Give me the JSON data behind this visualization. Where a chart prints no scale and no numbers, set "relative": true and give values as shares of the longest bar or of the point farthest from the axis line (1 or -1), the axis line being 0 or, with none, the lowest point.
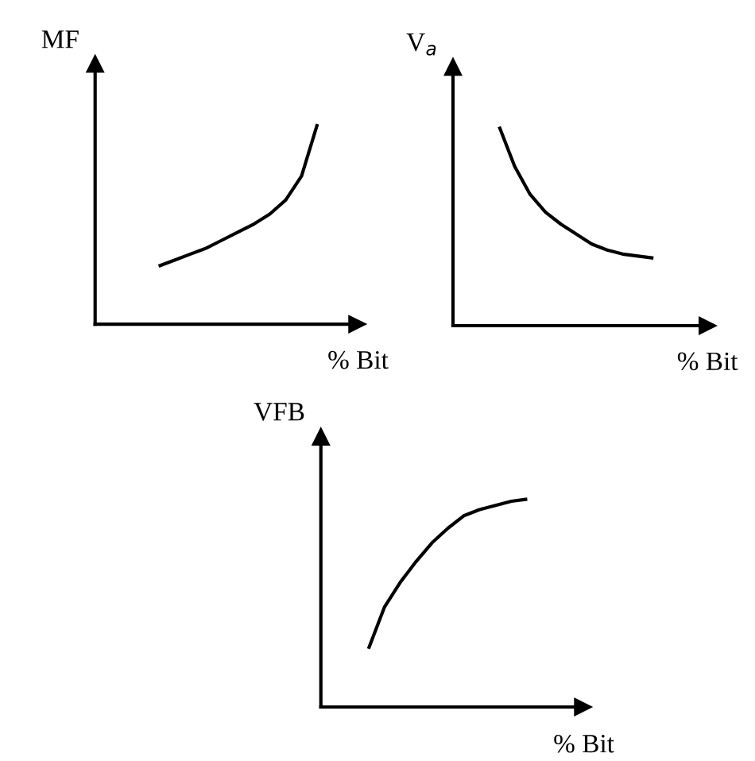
{
  "chart_data": [
    {
      "type": "line",
      "ylabel": "MF",
      "xlabel": "% Bit",
      "relative": true,
      "categories": [
        null,
        null,
        null,
        null,
        null,
        null,
        null,
        null,
        null,
        null,
        null,
        null,
        null,
        null,
        null,
        null,
        null
      ],
      "series": [
        {
          "color": "#000000",
          "values": [
            null,
            null,
            null,
            null,
            0.29,
            0.32,
            0.35,
            0.38,
            0.42,
            0.46,
            0.5,
            0.55,
            0.62,
            0.74,
            1.0,
            null,
            null
          ]
        }
      ]
    },
    {
      "type": "line",
      "ylabel": "V$_{a}$",
      "xlabel": "% Bit",
      "relative": true,
      "categories": [
        null,
        null,
        null,
        null,
        null,
        null,
        null,
        null,
        null,
        null,
        null,
        null,
        null,
        null,
        null,
        null,
        null
      ],
      "series": [
        {
          "color": "#000000",
          "values": [
            null,
            null,
            null,
            1.0,
            0.8,
            0.66,
            0.57,
            0.51,
            0.46,
            0.41,
            0.38,
            0.36,
            0.35,
            0.34,
            null,
            null,
            null
          ]
        }
      ]
    },
    {
      "type": "line",
      "ylabel": "VFB",
      "xlabel": "% Bit",
      "relative": true,
      "categories": [
        null,
        null,
        null,
        null,
        null,
        null,
        null,
        null,
        null,
        null,
        null,
        null,
        null,
        null,
        null,
        null,
        null
      ],
      "series": [
        {
          "color": "#000000",
          "values": [
            null,
            null,
            null,
            0.28,
            0.48,
            0.6,
            0.7,
            0.79,
            0.86,
            0.92,
            0.95,
            0.97,
            0.99,
            1.0,
            null,
            null,
            null
          ]
        }
      ]
    }
  ]
}
